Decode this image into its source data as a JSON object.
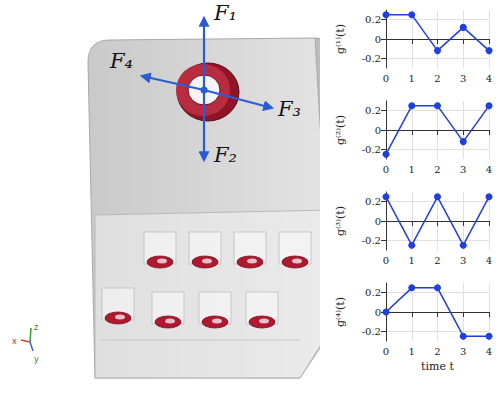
{
  "diagram": {
    "forces": [
      "F₁",
      "F₂",
      "F₃",
      "F₄"
    ],
    "axes": [
      "x",
      "y",
      "z"
    ]
  },
  "chart_data": [
    {
      "type": "line",
      "ylabel": "g⁽¹⁾(t)",
      "x": [
        0,
        1,
        2,
        3,
        4
      ],
      "values": [
        0.25,
        0.25,
        -0.12,
        0.12,
        -0.12
      ],
      "color": "#1f3fdf",
      "marker": "circle",
      "xlim": [
        0,
        4
      ],
      "xticks": [
        0,
        1,
        2,
        3,
        4
      ],
      "ylim": [
        -0.3,
        0.3
      ],
      "yticks": [
        -0.2,
        0,
        0.2
      ],
      "grid": true
    },
    {
      "type": "line",
      "ylabel": "g⁽²⁾(t)",
      "x": [
        0,
        1,
        2,
        3,
        4
      ],
      "values": [
        -0.25,
        0.25,
        0.25,
        -0.12,
        0.25
      ],
      "color": "#1f3fdf",
      "marker": "circle",
      "xlim": [
        0,
        4
      ],
      "xticks": [
        0,
        1,
        2,
        3,
        4
      ],
      "ylim": [
        -0.3,
        0.3
      ],
      "yticks": [
        -0.2,
        0,
        0.2
      ],
      "grid": true
    },
    {
      "type": "line",
      "ylabel": "g⁽³⁾(t)",
      "x": [
        0,
        1,
        2,
        3,
        4
      ],
      "values": [
        0.25,
        -0.25,
        0.25,
        -0.25,
        0.25
      ],
      "color": "#1f3fdf",
      "marker": "circle",
      "xlim": [
        0,
        4
      ],
      "xticks": [
        0,
        1,
        2,
        3,
        4
      ],
      "ylim": [
        -0.3,
        0.3
      ],
      "yticks": [
        -0.2,
        0,
        0.2
      ],
      "grid": true
    },
    {
      "type": "line",
      "ylabel": "g⁽⁴⁾(t)",
      "xlabel": "time t",
      "x": [
        0,
        1,
        2,
        3,
        4
      ],
      "values": [
        0,
        0.25,
        0.25,
        -0.25,
        -0.25
      ],
      "color": "#1f3fdf",
      "marker": "circle",
      "xlim": [
        0,
        4
      ],
      "xticks": [
        0,
        1,
        2,
        3,
        4
      ],
      "ylim": [
        -0.3,
        0.3
      ],
      "yticks": [
        -0.2,
        0,
        0.2
      ],
      "grid": true
    }
  ]
}
